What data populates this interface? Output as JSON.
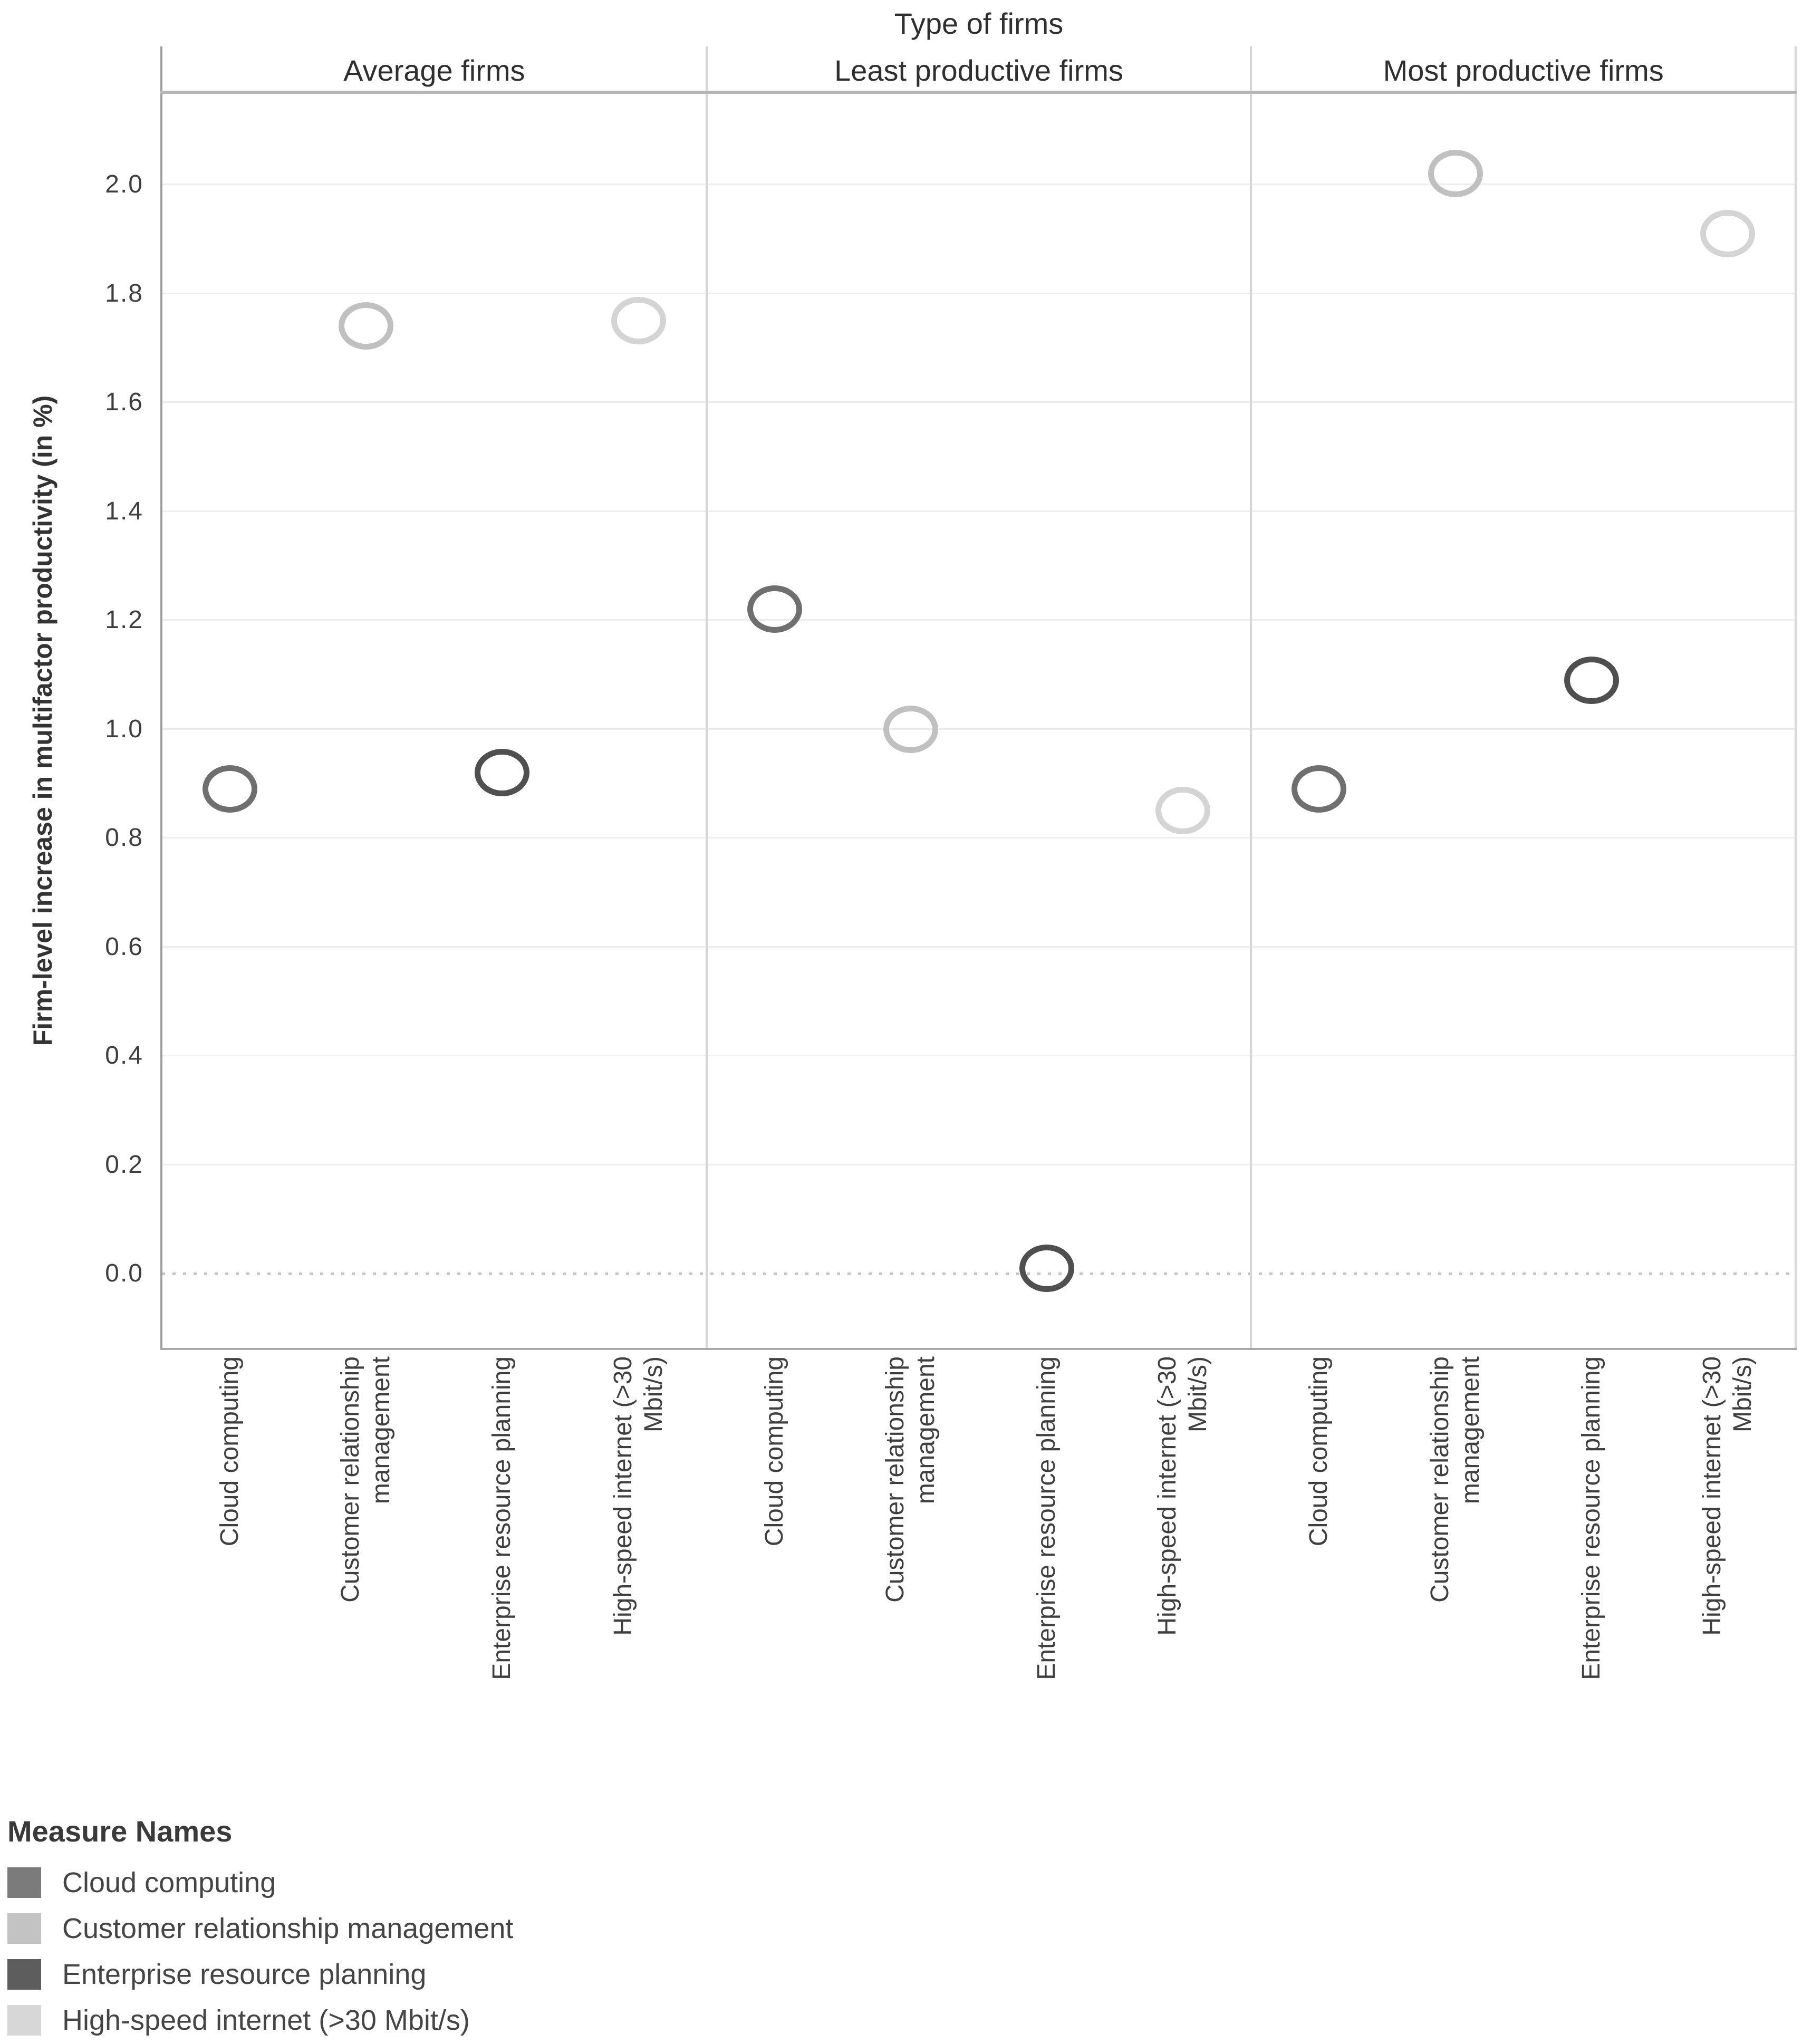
{
  "title": "Type of firms",
  "y_axis": {
    "title": "Firm-level increase in multifactor productivity (in %)",
    "tick_labels": [
      "2.0",
      "1.8",
      "1.6",
      "1.4",
      "1.2",
      "1.0",
      "0.8",
      "0.6",
      "0.4",
      "0.2",
      "0.0"
    ]
  },
  "legend": {
    "title": "Measure Names",
    "items": [
      {
        "label": "Cloud computing",
        "swatch_color": "#7b7b7b"
      },
      {
        "label": "Customer relationship management",
        "swatch_color": "#c3c3c3"
      },
      {
        "label": "Enterprise resource planning",
        "swatch_color": "#5d5d5d"
      },
      {
        "label": "High-speed internet (>30 Mbit/s)",
        "swatch_color": "#d7d7d7"
      }
    ]
  },
  "chart_data": {
    "type": "scatter",
    "facet_title": "Type of firms",
    "panels": [
      "Average firms",
      "Least productive firms",
      "Most productive firms"
    ],
    "categories": [
      {
        "label_lines": [
          "Cloud computing"
        ]
      },
      {
        "label_lines": [
          "Customer relationship",
          "management"
        ]
      },
      {
        "label_lines": [
          "Enterprise resource planning"
        ]
      },
      {
        "label_lines": [
          "High-speed internet (>30",
          "Mbit/s)"
        ]
      }
    ],
    "series": [
      {
        "name": "Cloud computing",
        "color": "#6f6f6f",
        "values_by_panel": [
          0.89,
          1.22,
          0.89
        ]
      },
      {
        "name": "Customer relationship management",
        "color": "#c0c0c0",
        "values_by_panel": [
          1.74,
          1.0,
          2.02
        ]
      },
      {
        "name": "Enterprise resource planning",
        "color": "#4f4f4f",
        "values_by_panel": [
          0.92,
          0.01,
          1.09
        ]
      },
      {
        "name": "High-speed internet (>30 Mbit/s)",
        "color": "#d4d4d4",
        "values_by_panel": [
          1.75,
          0.85,
          1.91
        ]
      }
    ],
    "ylabel": "Firm-level increase in multifactor productivity (in %)",
    "ylim": [
      -0.14,
      2.17
    ],
    "ytick_step": 0.2,
    "grid": true,
    "zero_line_style": "dotted",
    "marker": "open-circle",
    "legend_position": "bottom-left"
  }
}
